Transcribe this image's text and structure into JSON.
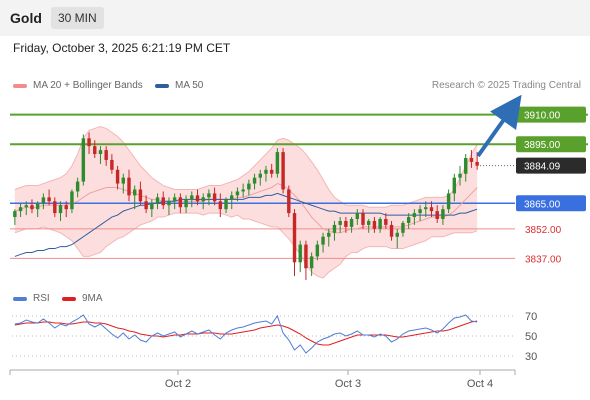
{
  "header": {
    "instrument": "Gold",
    "timeframe": "30 MIN"
  },
  "timestamp": "Friday, October 3, 2025 6:21:19 PM CET",
  "credit": "Research © 2025 Trading Central",
  "legend_main": [
    {
      "label": "MA 20 + Bollinger Bands",
      "color": "#f08c8c"
    },
    {
      "label": "MA 50",
      "color": "#2f5d9e"
    }
  ],
  "legend_rsi": [
    {
      "label": "RSI",
      "color": "#4f7fd6"
    },
    {
      "label": "9MA",
      "color": "#e02020"
    }
  ],
  "colors": {
    "up_candle": "#2e8b2e",
    "down_candle": "#c62828",
    "target": "#5aa02c",
    "pivot": "#3a6fe0",
    "support": "#f08c8c",
    "band_fill": "#fbd3d3",
    "arrow": "#2f6db5"
  },
  "chart_data": {
    "type": "candlestick",
    "y_min": 3825,
    "y_max": 3920,
    "levels": [
      {
        "value": 3910.0,
        "label": "3910.00",
        "kind": "target"
      },
      {
        "value": 3895.0,
        "label": "3895.00",
        "kind": "target"
      },
      {
        "value": 3884.09,
        "label": "3884.09",
        "kind": "last"
      },
      {
        "value": 3865.0,
        "label": "3865.00",
        "kind": "pivot"
      },
      {
        "value": 3852.0,
        "label": "3852.00",
        "kind": "support"
      },
      {
        "value": 3837.0,
        "label": "3837.00",
        "kind": "support"
      }
    ],
    "x_labels": [
      "Oct 2",
      "Oct 3",
      "Oct 4"
    ],
    "candles": [
      [
        3858,
        3862,
        3854,
        3861
      ],
      [
        3861,
        3865,
        3858,
        3863
      ],
      [
        3863,
        3866,
        3859,
        3864
      ],
      [
        3864,
        3867,
        3860,
        3862
      ],
      [
        3862,
        3866,
        3858,
        3865
      ],
      [
        3865,
        3870,
        3862,
        3868
      ],
      [
        3868,
        3872,
        3864,
        3866
      ],
      [
        3866,
        3868,
        3858,
        3860
      ],
      [
        3860,
        3866,
        3856,
        3864
      ],
      [
        3864,
        3866,
        3858,
        3862
      ],
      [
        3862,
        3872,
        3860,
        3871
      ],
      [
        3871,
        3878,
        3868,
        3876
      ],
      [
        3876,
        3900,
        3874,
        3898
      ],
      [
        3898,
        3901,
        3890,
        3894
      ],
      [
        3894,
        3897,
        3888,
        3890
      ],
      [
        3890,
        3894,
        3885,
        3892
      ],
      [
        3892,
        3894,
        3884,
        3887
      ],
      [
        3887,
        3890,
        3880,
        3882
      ],
      [
        3882,
        3884,
        3872,
        3875
      ],
      [
        3875,
        3880,
        3870,
        3878
      ],
      [
        3878,
        3882,
        3866,
        3869
      ],
      [
        3869,
        3874,
        3862,
        3872
      ],
      [
        3872,
        3876,
        3864,
        3866
      ],
      [
        3866,
        3869,
        3860,
        3862
      ],
      [
        3862,
        3867,
        3858,
        3865
      ],
      [
        3865,
        3870,
        3862,
        3868
      ],
      [
        3868,
        3871,
        3862,
        3864
      ],
      [
        3864,
        3868,
        3859,
        3866
      ],
      [
        3866,
        3870,
        3862,
        3868
      ],
      [
        3868,
        3870,
        3860,
        3863
      ],
      [
        3863,
        3869,
        3860,
        3867
      ],
      [
        3867,
        3871,
        3863,
        3869
      ],
      [
        3869,
        3872,
        3864,
        3866
      ],
      [
        3866,
        3870,
        3862,
        3868
      ],
      [
        3868,
        3872,
        3864,
        3870
      ],
      [
        3870,
        3873,
        3864,
        3866
      ],
      [
        3866,
        3870,
        3858,
        3862
      ],
      [
        3862,
        3868,
        3860,
        3867
      ],
      [
        3867,
        3871,
        3862,
        3869
      ],
      [
        3869,
        3873,
        3866,
        3871
      ],
      [
        3871,
        3875,
        3868,
        3872
      ],
      [
        3872,
        3877,
        3869,
        3875
      ],
      [
        3875,
        3880,
        3872,
        3878
      ],
      [
        3878,
        3882,
        3874,
        3880
      ],
      [
        3880,
        3884,
        3876,
        3882
      ],
      [
        3882,
        3885,
        3878,
        3880
      ],
      [
        3880,
        3893,
        3878,
        3891
      ],
      [
        3891,
        3893,
        3870,
        3872
      ],
      [
        3872,
        3874,
        3858,
        3860
      ],
      [
        3860,
        3862,
        3828,
        3835
      ],
      [
        3835,
        3846,
        3830,
        3844
      ],
      [
        3844,
        3846,
        3826,
        3832
      ],
      [
        3832,
        3840,
        3828,
        3838
      ],
      [
        3838,
        3846,
        3836,
        3844
      ],
      [
        3844,
        3850,
        3840,
        3848
      ],
      [
        3848,
        3852,
        3843,
        3850
      ],
      [
        3850,
        3856,
        3846,
        3854
      ],
      [
        3854,
        3858,
        3850,
        3856
      ],
      [
        3856,
        3858,
        3850,
        3853
      ],
      [
        3853,
        3858,
        3850,
        3857
      ],
      [
        3857,
        3862,
        3854,
        3860
      ],
      [
        3860,
        3862,
        3852,
        3854
      ],
      [
        3854,
        3857,
        3850,
        3856
      ],
      [
        3856,
        3858,
        3850,
        3852
      ],
      [
        3852,
        3858,
        3850,
        3857
      ],
      [
        3857,
        3860,
        3852,
        3854
      ],
      [
        3854,
        3856,
        3846,
        3848
      ],
      [
        3848,
        3852,
        3842,
        3850
      ],
      [
        3850,
        3856,
        3848,
        3855
      ],
      [
        3855,
        3860,
        3852,
        3858
      ],
      [
        3858,
        3862,
        3854,
        3860
      ],
      [
        3860,
        3864,
        3856,
        3862
      ],
      [
        3862,
        3866,
        3858,
        3863
      ],
      [
        3863,
        3866,
        3858,
        3861
      ],
      [
        3861,
        3864,
        3855,
        3857
      ],
      [
        3857,
        3864,
        3854,
        3862
      ],
      [
        3862,
        3872,
        3860,
        3870
      ],
      [
        3870,
        3880,
        3866,
        3878
      ],
      [
        3878,
        3884,
        3874,
        3880
      ],
      [
        3880,
        3890,
        3876,
        3888
      ],
      [
        3888,
        3892,
        3883,
        3886
      ],
      [
        3886,
        3891,
        3882,
        3884.09
      ]
    ],
    "ma20": [
      3861,
      3862,
      3863,
      3863,
      3863,
      3864,
      3864,
      3864,
      3864,
      3864,
      3865,
      3866,
      3868,
      3870,
      3871,
      3872,
      3873,
      3873,
      3873,
      3872,
      3871,
      3870,
      3869,
      3868,
      3867,
      3867,
      3866,
      3866,
      3866,
      3866,
      3866,
      3866,
      3866,
      3866,
      3867,
      3867,
      3867,
      3867,
      3867,
      3868,
      3868,
      3869,
      3870,
      3871,
      3872,
      3873,
      3875,
      3874,
      3872,
      3869,
      3866,
      3862,
      3858,
      3855,
      3852,
      3851,
      3850,
      3850,
      3851,
      3852,
      3852,
      3853,
      3853,
      3853,
      3853,
      3853,
      3853,
      3853,
      3853,
      3854,
      3855,
      3856,
      3857,
      3858,
      3858,
      3858,
      3859,
      3861,
      3864,
      3867,
      3870,
      3873
    ],
    "bb_upper": [
      3872,
      3873,
      3874,
      3874,
      3874,
      3875,
      3876,
      3877,
      3878,
      3880,
      3884,
      3890,
      3898,
      3902,
      3903,
      3904,
      3903,
      3901,
      3899,
      3896,
      3892,
      3888,
      3884,
      3881,
      3878,
      3876,
      3874,
      3873,
      3872,
      3872,
      3872,
      3872,
      3872,
      3873,
      3874,
      3874,
      3874,
      3875,
      3876,
      3877,
      3879,
      3881,
      3884,
      3887,
      3890,
      3893,
      3897,
      3898,
      3897,
      3895,
      3893,
      3890,
      3886,
      3882,
      3877,
      3872,
      3868,
      3866,
      3864,
      3864,
      3864,
      3864,
      3863,
      3863,
      3863,
      3863,
      3864,
      3864,
      3864,
      3865,
      3866,
      3867,
      3868,
      3868,
      3868,
      3868,
      3869,
      3872,
      3878,
      3884,
      3890,
      3895
    ],
    "bb_lower": [
      3850,
      3851,
      3852,
      3852,
      3852,
      3853,
      3852,
      3851,
      3850,
      3848,
      3846,
      3842,
      3838,
      3838,
      3839,
      3840,
      3843,
      3845,
      3847,
      3848,
      3850,
      3852,
      3854,
      3855,
      3856,
      3858,
      3858,
      3859,
      3860,
      3860,
      3860,
      3860,
      3860,
      3859,
      3860,
      3860,
      3860,
      3859,
      3858,
      3859,
      3857,
      3857,
      3856,
      3855,
      3854,
      3853,
      3853,
      3850,
      3847,
      3843,
      3839,
      3834,
      3830,
      3828,
      3827,
      3830,
      3832,
      3834,
      3838,
      3840,
      3840,
      3842,
      3843,
      3843,
      3843,
      3843,
      3842,
      3842,
      3842,
      3843,
      3844,
      3845,
      3846,
      3848,
      3848,
      3848,
      3849,
      3850,
      3850,
      3850,
      3850,
      3851
    ],
    "ma50": [
      3838,
      3839,
      3840,
      3840,
      3841,
      3841,
      3842,
      3842,
      3843,
      3843,
      3844,
      3846,
      3848,
      3850,
      3852,
      3854,
      3856,
      3858,
      3859,
      3861,
      3862,
      3863,
      3864,
      3864,
      3865,
      3865,
      3866,
      3866,
      3866,
      3867,
      3867,
      3867,
      3867,
      3867,
      3867,
      3867,
      3867,
      3867,
      3867,
      3867,
      3867,
      3868,
      3868,
      3868,
      3869,
      3869,
      3870,
      3869,
      3868,
      3867,
      3866,
      3865,
      3864,
      3863,
      3862,
      3861,
      3861,
      3860,
      3860,
      3860,
      3860,
      3860,
      3860,
      3860,
      3860,
      3859,
      3859,
      3859,
      3859,
      3859,
      3859,
      3859,
      3859,
      3859,
      3859,
      3859,
      3859,
      3859,
      3860,
      3860,
      3861,
      3862
    ],
    "rsi": {
      "levels": [
        30,
        50,
        70
      ],
      "rsi_values": [
        62,
        63,
        66,
        64,
        63,
        67,
        63,
        58,
        62,
        60,
        64,
        67,
        71,
        62,
        59,
        62,
        57,
        52,
        48,
        53,
        47,
        51,
        46,
        44,
        50,
        53,
        50,
        52,
        54,
        49,
        52,
        55,
        52,
        54,
        56,
        51,
        47,
        53,
        56,
        58,
        59,
        61,
        63,
        64,
        65,
        62,
        70,
        53,
        46,
        36,
        41,
        33,
        38,
        44,
        47,
        49,
        52,
        53,
        50,
        52,
        55,
        51,
        51,
        49,
        52,
        50,
        44,
        47,
        52,
        55,
        56,
        57,
        58,
        56,
        53,
        57,
        63,
        68,
        69,
        71,
        65,
        64
      ],
      "ma9_values": [
        61,
        62,
        63,
        63,
        63,
        64,
        64,
        63,
        63,
        62,
        62,
        63,
        64,
        64,
        63,
        63,
        62,
        60,
        58,
        57,
        55,
        54,
        52,
        51,
        50,
        50,
        49,
        50,
        51,
        51,
        52,
        52,
        52,
        53,
        53,
        53,
        52,
        52,
        52,
        53,
        54,
        55,
        56,
        58,
        59,
        60,
        61,
        60,
        58,
        55,
        52,
        48,
        45,
        42,
        41,
        41,
        43,
        45,
        47,
        49,
        51,
        51,
        51,
        51,
        51,
        51,
        50,
        49,
        49,
        50,
        51,
        52,
        53,
        54,
        55,
        55,
        56,
        58,
        60,
        62,
        64,
        65
      ]
    }
  }
}
